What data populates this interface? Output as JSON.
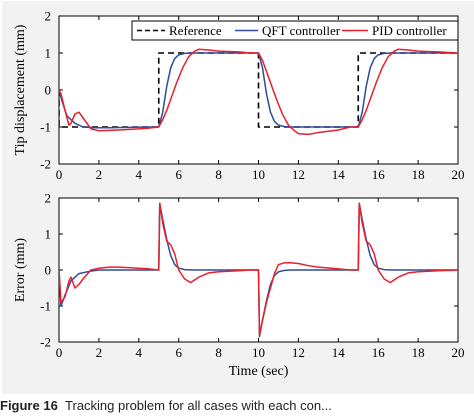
{
  "caption": {
    "label": "Figure 16",
    "text": "Tracking problem for all cases with each con..."
  },
  "colors": {
    "reference": "#000000",
    "qft": "#2e4b9e",
    "pid": "#e8202a"
  },
  "chart_data": [
    {
      "type": "line",
      "ylabel": "Tip displacement (mm)",
      "xlabel": "",
      "xlim": [
        0,
        20
      ],
      "ylim": [
        -2,
        2
      ],
      "x_ticks": [
        "0",
        "2",
        "4",
        "6",
        "8",
        "10",
        "12",
        "14",
        "16",
        "18",
        "20"
      ],
      "y_ticks": [
        "-2",
        "-1",
        "0",
        "1",
        "2"
      ],
      "legend_position": "top",
      "series": [
        {
          "name": "Reference",
          "style": "dashed",
          "x": [
            0,
            0,
            5,
            5,
            10,
            10,
            15,
            15,
            20
          ],
          "y": [
            0,
            -1,
            -1,
            1,
            1,
            -1,
            -1,
            1,
            1
          ]
        },
        {
          "name": "QFT controller",
          "x": [
            0,
            0.15,
            0.4,
            0.8,
            1.2,
            1.8,
            2.5,
            3.5,
            4.5,
            5.0,
            5.2,
            5.4,
            5.6,
            5.8,
            6.0,
            6.3,
            6.7,
            7.5,
            8.5,
            9.5,
            10.0,
            10.2,
            10.4,
            10.6,
            10.8,
            11.0,
            11.3,
            11.7,
            12.5,
            13.5,
            14.5,
            15.0,
            15.2,
            15.4,
            15.6,
            15.8,
            16.0,
            16.3,
            16.7,
            17.5,
            18.5,
            20.0
          ],
          "y": [
            0,
            -0.3,
            -0.7,
            -0.9,
            -1.0,
            -1.02,
            -1.02,
            -1.01,
            -1.0,
            -1.0,
            -0.6,
            0.1,
            0.6,
            0.85,
            0.95,
            0.99,
            1.0,
            1.0,
            1.0,
            1.0,
            1.0,
            0.6,
            -0.1,
            -0.6,
            -0.85,
            -0.95,
            -0.99,
            -1.0,
            -1.0,
            -1.0,
            -1.0,
            -1.0,
            -0.6,
            0.1,
            0.6,
            0.85,
            0.95,
            0.99,
            1.0,
            1.0,
            1.0,
            1.0
          ]
        },
        {
          "name": "PID controller",
          "x": [
            0,
            0.1,
            0.3,
            0.5,
            0.6,
            0.8,
            1.0,
            1.2,
            1.6,
            2.0,
            3.0,
            4.0,
            4.5,
            5.0,
            5.2,
            5.4,
            5.6,
            5.9,
            6.2,
            6.5,
            6.8,
            7.0,
            7.5,
            8.0,
            9.0,
            9.6,
            10.0,
            10.2,
            10.4,
            10.6,
            10.9,
            11.2,
            11.5,
            11.8,
            12.0,
            12.5,
            13.0,
            14.0,
            14.6,
            15.0,
            15.2,
            15.4,
            15.6,
            15.9,
            16.2,
            16.5,
            16.8,
            17.0,
            17.5,
            18.0,
            19.0,
            20.0
          ],
          "y": [
            0,
            -0.1,
            -0.55,
            -0.95,
            -0.9,
            -0.65,
            -0.6,
            -0.75,
            -1.05,
            -1.1,
            -1.08,
            -1.05,
            -1.03,
            -1.0,
            -0.8,
            -0.55,
            -0.25,
            0.2,
            0.6,
            0.9,
            1.05,
            1.1,
            1.08,
            1.05,
            1.03,
            1.0,
            1.0,
            0.8,
            0.5,
            0.2,
            -0.25,
            -0.65,
            -0.95,
            -1.1,
            -1.18,
            -1.2,
            -1.15,
            -1.08,
            -1.0,
            -1.0,
            -0.8,
            -0.55,
            -0.25,
            0.2,
            0.6,
            0.9,
            1.05,
            1.1,
            1.08,
            1.05,
            1.03,
            1.0
          ]
        }
      ]
    },
    {
      "type": "line",
      "ylabel": "Error (mm)",
      "xlabel": "Time (sec)",
      "xlim": [
        0,
        20
      ],
      "ylim": [
        -2,
        2
      ],
      "x_ticks": [
        "0",
        "2",
        "4",
        "6",
        "8",
        "10",
        "12",
        "14",
        "16",
        "18",
        "20"
      ],
      "y_ticks": [
        "-2",
        "-1",
        "0",
        "1",
        "2"
      ],
      "series": [
        {
          "name": "QFT controller",
          "x": [
            0,
            0.1,
            0.3,
            0.6,
            1.0,
            1.5,
            2.0,
            3.0,
            4.0,
            5.0,
            5.0,
            5.05,
            5.2,
            5.4,
            5.6,
            5.8,
            6.0,
            6.3,
            6.7,
            7.5,
            8.5,
            9.5,
            10.0,
            10.0,
            10.05,
            10.2,
            10.4,
            10.6,
            10.8,
            11.0,
            11.3,
            11.7,
            12.5,
            13.5,
            14.5,
            15.0,
            15.0,
            15.05,
            15.2,
            15.4,
            15.6,
            15.8,
            16.0,
            16.3,
            16.7,
            17.5,
            18.5,
            20.0
          ],
          "y": [
            0,
            -1.0,
            -0.7,
            -0.3,
            -0.1,
            -0.04,
            0.0,
            0.0,
            0.0,
            0.0,
            0.0,
            1.85,
            1.4,
            0.85,
            0.4,
            0.15,
            0.05,
            0.01,
            0.0,
            0.0,
            0.0,
            0.0,
            0.0,
            0.0,
            -1.85,
            -1.4,
            -0.85,
            -0.4,
            -0.15,
            -0.05,
            -0.01,
            0.0,
            0.0,
            0.0,
            0.0,
            0.0,
            0.0,
            1.85,
            1.4,
            0.85,
            0.4,
            0.15,
            0.05,
            0.01,
            0.0,
            0.0,
            0.0,
            0.0
          ]
        },
        {
          "name": "PID controller",
          "x": [
            0,
            0.1,
            0.3,
            0.5,
            0.6,
            0.8,
            1.0,
            1.2,
            1.6,
            2.0,
            2.5,
            3.0,
            4.0,
            4.5,
            5.0,
            5.0,
            5.05,
            5.2,
            5.4,
            5.6,
            5.8,
            6.0,
            6.3,
            6.6,
            7.0,
            7.5,
            8.0,
            9.0,
            9.6,
            10.0,
            10.0,
            10.05,
            10.2,
            10.4,
            10.6,
            10.8,
            11.0,
            11.3,
            11.6,
            12.0,
            12.5,
            13.0,
            14.0,
            14.6,
            15.0,
            15.0,
            15.05,
            15.2,
            15.4,
            15.6,
            15.8,
            16.0,
            16.3,
            16.6,
            17.0,
            17.5,
            18.0,
            19.0,
            20.0
          ],
          "y": [
            0,
            -0.9,
            -0.75,
            -0.3,
            -0.2,
            -0.5,
            -0.4,
            -0.25,
            0.0,
            0.05,
            0.08,
            0.08,
            0.05,
            0.03,
            0.0,
            0.0,
            1.85,
            1.3,
            0.8,
            0.7,
            0.45,
            0.0,
            -0.25,
            -0.35,
            -0.2,
            -0.08,
            -0.05,
            -0.02,
            0.0,
            0.0,
            0.0,
            -1.8,
            -1.4,
            -0.9,
            -0.5,
            -0.1,
            0.15,
            0.2,
            0.2,
            0.18,
            0.12,
            0.08,
            0.03,
            0.0,
            0.0,
            0.0,
            1.85,
            1.3,
            0.8,
            0.7,
            0.45,
            0.0,
            -0.25,
            -0.35,
            -0.2,
            -0.08,
            -0.05,
            -0.02,
            0.0
          ]
        }
      ]
    }
  ]
}
